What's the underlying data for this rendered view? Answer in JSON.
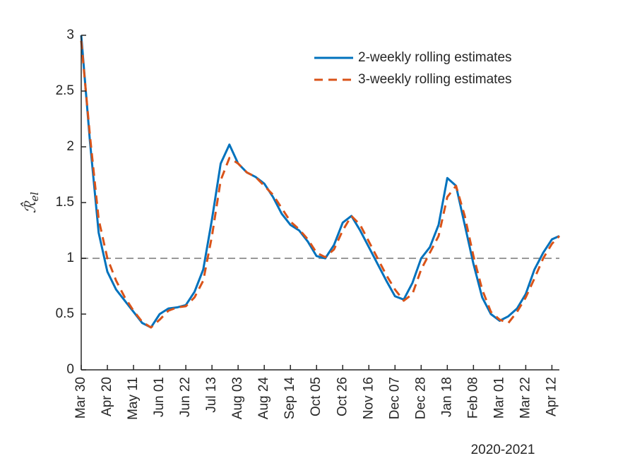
{
  "chart_data": {
    "type": "line",
    "xlabel": "2020-2021",
    "ylabel": "ℛ̂",
    "ylabel_sub": "el",
    "x": [
      "2020-03-30",
      "2020-04-06",
      "2020-04-13",
      "2020-04-20",
      "2020-04-27",
      "2020-05-04",
      "2020-05-11",
      "2020-05-18",
      "2020-05-25",
      "2020-06-01",
      "2020-06-08",
      "2020-06-15",
      "2020-06-22",
      "2020-06-29",
      "2020-07-06",
      "2020-07-13",
      "2020-07-20",
      "2020-07-27",
      "2020-08-03",
      "2020-08-10",
      "2020-08-17",
      "2020-08-24",
      "2020-08-31",
      "2020-09-07",
      "2020-09-14",
      "2020-09-21",
      "2020-09-28",
      "2020-10-05",
      "2020-10-12",
      "2020-10-19",
      "2020-10-26",
      "2020-11-02",
      "2020-11-09",
      "2020-11-16",
      "2020-11-23",
      "2020-11-30",
      "2020-12-07",
      "2020-12-14",
      "2020-12-21",
      "2020-12-28",
      "2021-01-04",
      "2021-01-11",
      "2021-01-18",
      "2021-01-25",
      "2021-02-01",
      "2021-02-08",
      "2021-02-15",
      "2021-02-22",
      "2021-03-01",
      "2021-03-08",
      "2021-03-15",
      "2021-03-22",
      "2021-03-29",
      "2021-04-05",
      "2021-04-12",
      "2021-04-18"
    ],
    "series": [
      {
        "name": "2-weekly rolling estimates",
        "color": "#0072bd",
        "dash": false,
        "values": [
          3.0,
          2.05,
          1.23,
          0.88,
          0.72,
          0.62,
          0.52,
          0.42,
          0.38,
          0.5,
          0.55,
          0.56,
          0.58,
          0.7,
          0.9,
          1.35,
          1.85,
          2.02,
          1.85,
          1.77,
          1.73,
          1.67,
          1.55,
          1.4,
          1.3,
          1.25,
          1.15,
          1.02,
          1.0,
          1.12,
          1.32,
          1.38,
          1.25,
          1.1,
          0.95,
          0.8,
          0.66,
          0.63,
          0.78,
          1.0,
          1.1,
          1.3,
          1.72,
          1.65,
          1.3,
          0.95,
          0.65,
          0.5,
          0.44,
          0.48,
          0.55,
          0.68,
          0.9,
          1.05,
          1.17,
          1.2
        ]
      },
      {
        "name": "3-weekly rolling estimates",
        "color": "#d95319",
        "dash": true,
        "values": [
          2.95,
          2.1,
          1.35,
          1.0,
          0.8,
          0.65,
          0.53,
          0.43,
          0.38,
          0.45,
          0.53,
          0.56,
          0.57,
          0.65,
          0.8,
          1.2,
          1.7,
          1.9,
          1.85,
          1.77,
          1.73,
          1.65,
          1.57,
          1.45,
          1.33,
          1.26,
          1.17,
          1.05,
          1.01,
          1.08,
          1.25,
          1.38,
          1.3,
          1.15,
          1.0,
          0.85,
          0.72,
          0.62,
          0.68,
          0.9,
          1.05,
          1.2,
          1.55,
          1.65,
          1.38,
          1.02,
          0.72,
          0.52,
          0.45,
          0.42,
          0.52,
          0.65,
          0.82,
          1.0,
          1.13,
          1.2
        ]
      }
    ],
    "reference_line": {
      "value": 1,
      "color": "#999999"
    },
    "xlim": [
      "2020-03-30",
      "2021-04-18"
    ],
    "xticks": [
      {
        "value": "2020-03-30",
        "label": "Mar 30"
      },
      {
        "value": "2020-04-20",
        "label": "Apr 20"
      },
      {
        "value": "2020-05-11",
        "label": "May 11"
      },
      {
        "value": "2020-06-01",
        "label": "Jun 01"
      },
      {
        "value": "2020-06-22",
        "label": "Jun 22"
      },
      {
        "value": "2020-07-13",
        "label": "Jul 13"
      },
      {
        "value": "2020-08-03",
        "label": "Aug 03"
      },
      {
        "value": "2020-08-24",
        "label": "Aug 24"
      },
      {
        "value": "2020-09-14",
        "label": "Sep 14"
      },
      {
        "value": "2020-10-05",
        "label": "Oct 05"
      },
      {
        "value": "2020-10-26",
        "label": "Oct 26"
      },
      {
        "value": "2020-11-16",
        "label": "Nov 16"
      },
      {
        "value": "2020-12-07",
        "label": "Dec 07"
      },
      {
        "value": "2020-12-28",
        "label": "Dec 28"
      },
      {
        "value": "2021-01-18",
        "label": "Jan 18"
      },
      {
        "value": "2021-02-08",
        "label": "Feb 08"
      },
      {
        "value": "2021-03-01",
        "label": "Mar 01"
      },
      {
        "value": "2021-03-22",
        "label": "Mar 22"
      },
      {
        "value": "2021-04-12",
        "label": "Apr 12"
      }
    ],
    "ylim": [
      0,
      3
    ],
    "yticks": [
      0,
      0.5,
      1,
      1.5,
      2,
      2.5,
      3
    ],
    "grid": false,
    "legend": "top-right"
  }
}
